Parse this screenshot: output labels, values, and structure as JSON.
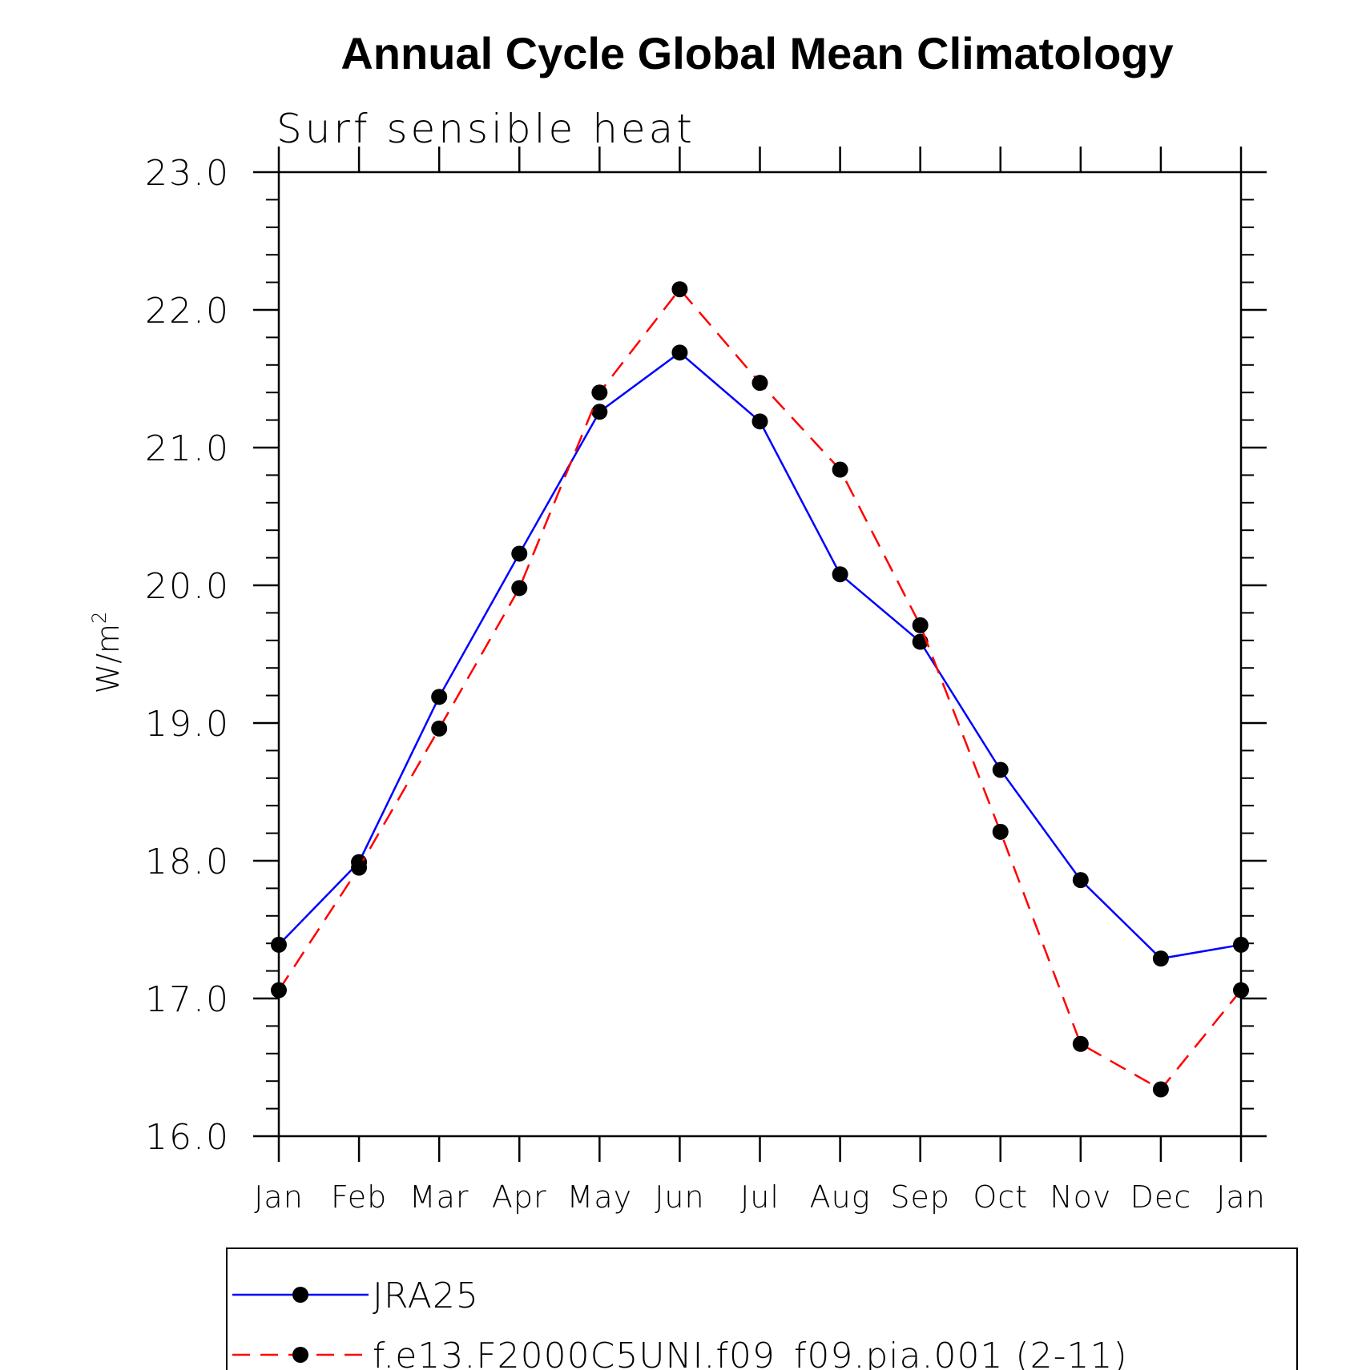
{
  "chart_data": {
    "type": "line",
    "title": "Annual Cycle Global Mean Climatology",
    "subtitle": "Surf sensible heat",
    "xlabel": "",
    "ylabel": "W/m",
    "ylabel_superscript": "2",
    "ylim": [
      16.0,
      23.0
    ],
    "y_ticks": [
      "16.0",
      "17.0",
      "18.0",
      "19.0",
      "20.0",
      "21.0",
      "22.0",
      "23.0"
    ],
    "categories": [
      "Jan",
      "Feb",
      "Mar",
      "Apr",
      "May",
      "Jun",
      "Jul",
      "Aug",
      "Sep",
      "Oct",
      "Nov",
      "Dec",
      "Jan"
    ],
    "grid": false,
    "legend_position": "bottom",
    "series": [
      {
        "name": "JRA25",
        "color": "#0000ff",
        "line_style": "solid",
        "marker": "circle",
        "values": [
          17.39,
          17.99,
          19.19,
          20.23,
          21.26,
          21.69,
          21.19,
          20.08,
          19.59,
          18.66,
          17.86,
          17.29,
          17.39
        ]
      },
      {
        "name": "f.e13.F2000C5UNI.f09_f09.pia.001 (2-11)",
        "color": "#ff0000",
        "line_style": "dashed",
        "marker": "circle",
        "values": [
          17.06,
          17.95,
          18.96,
          19.98,
          21.4,
          22.15,
          21.47,
          20.84,
          19.71,
          18.21,
          16.67,
          16.34,
          17.06
        ]
      }
    ]
  }
}
